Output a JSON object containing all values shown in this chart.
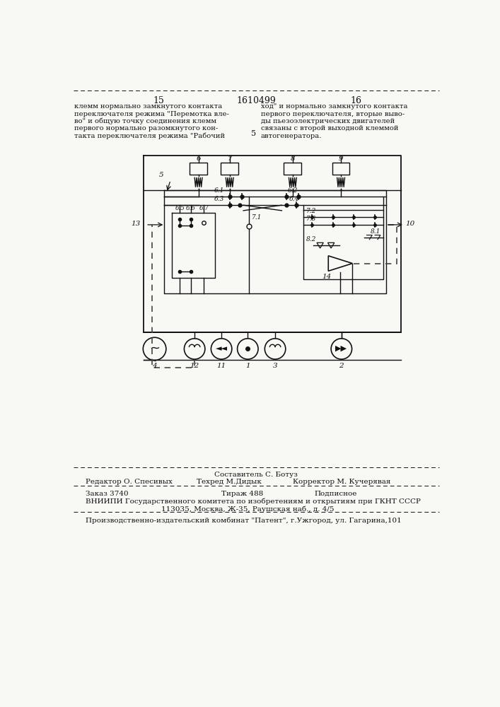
{
  "page_bg": "#f8f8f5",
  "top_left_num": "15",
  "top_center_num": "1610499",
  "top_right_num": "16",
  "left_text_lines": [
    "клемм нормально замкнутого контакта",
    "переключателя режима \"Перемотка вле-",
    "во\" и общую точку соединения клемм",
    "первого нормально разомкнутого кон-",
    "такта переключателя режима \"Рабочий"
  ],
  "right_text_lines": [
    "ход\" и нормально замкнутого контакта",
    "первого переключателя, вторые выво-",
    "ды пьезоэлектрических двигателей",
    "связаны с второй выходной клеммой",
    "автогенератора."
  ],
  "bottom_composer": "Составитель С. Ботуз",
  "bottom_editor": "Редактор О. Спесивых",
  "bottom_techred": "Техред М.Дидык",
  "bottom_corrector": "Корректор М. Кучерявая",
  "bottom_order": "Заказ 3740",
  "bottom_tirazh": "Тираж 488",
  "bottom_podpis": "Подписное",
  "bottom_vniip": "ВНИИПИ Государственного комитета по изобретениям и открытиям при ГКНТ СССР",
  "bottom_addr": "113035, Москва, Ж-35, Раушская наб., д. 4/5",
  "bottom_prod": "Производственно-издательский комбинат \"Патент\", г.Ужгород, ул. Гагарина,101",
  "text_color": "#111111",
  "line_color": "#111111",
  "dashed_color": "#444444"
}
